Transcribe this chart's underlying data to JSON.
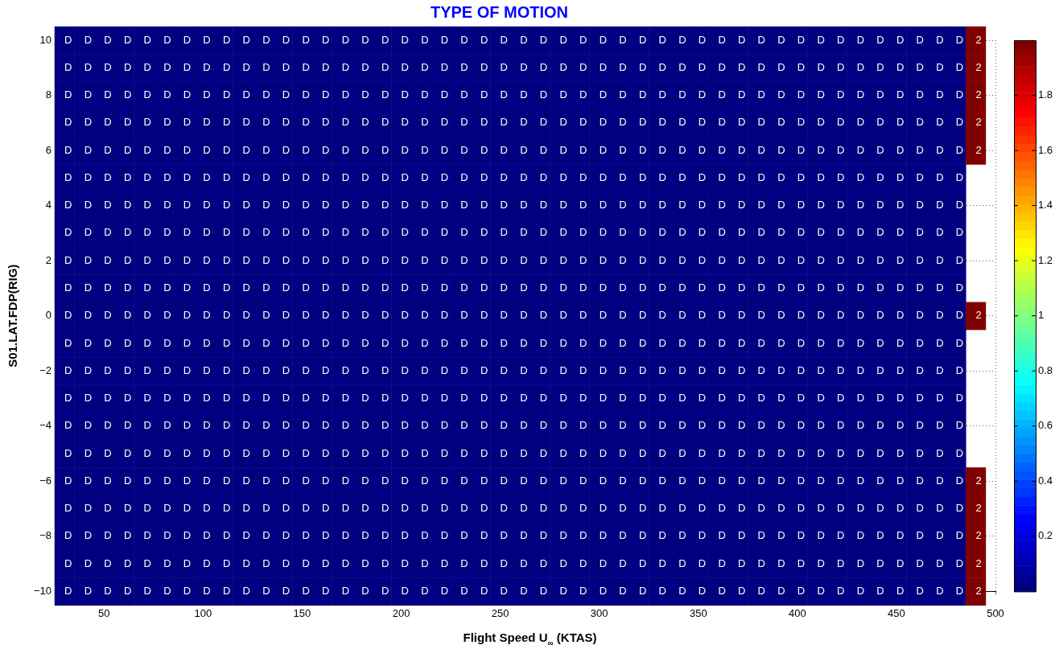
{
  "chart_data": {
    "type": "heatmap",
    "title": "TYPE OF MOTION",
    "xlabel": "Flight Speed U$_{∞}$ (KTAS)",
    "ylabel": "S01.LAT.FDP(RIG)",
    "x": [
      30,
      40,
      50,
      60,
      70,
      80,
      90,
      100,
      110,
      120,
      130,
      140,
      150,
      160,
      170,
      180,
      190,
      200,
      210,
      220,
      230,
      240,
      250,
      260,
      270,
      280,
      290,
      300,
      310,
      320,
      330,
      340,
      350,
      360,
      370,
      380,
      390,
      400,
      410,
      420,
      430,
      440,
      450,
      460,
      470,
      480,
      490
    ],
    "y_categories": [
      "10",
      null,
      "8",
      null,
      "6",
      null,
      "4",
      null,
      "2",
      null,
      "0",
      null,
      "−2",
      null,
      "−4",
      null,
      "−6",
      null,
      "−8",
      null,
      "−10"
    ],
    "xlim": [
      30,
      500
    ],
    "xticks": [
      50,
      100,
      150,
      200,
      250,
      300,
      350,
      400,
      450,
      500
    ],
    "clim": [
      0,
      2
    ],
    "cticks": [
      0.2,
      0.4,
      0.6,
      0.8,
      1,
      1.2,
      1.4,
      1.6,
      1.8
    ],
    "grid": true,
    "legend": false,
    "line_style": "dotted",
    "cells": [
      [
        0,
        0,
        0,
        0,
        0,
        0,
        0,
        0,
        0,
        0,
        0,
        0,
        0,
        0,
        0,
        0,
        0,
        0,
        0,
        0,
        0,
        0,
        0,
        0,
        0,
        0,
        0,
        0,
        0,
        0,
        0,
        0,
        0,
        0,
        0,
        0,
        0,
        0,
        0,
        0,
        0,
        0,
        0,
        0,
        0,
        0,
        2
      ],
      [
        0,
        0,
        0,
        0,
        0,
        0,
        0,
        0,
        0,
        0,
        0,
        0,
        0,
        0,
        0,
        0,
        0,
        0,
        0,
        0,
        0,
        0,
        0,
        0,
        0,
        0,
        0,
        0,
        0,
        0,
        0,
        0,
        0,
        0,
        0,
        0,
        0,
        0,
        0,
        0,
        0,
        0,
        0,
        0,
        0,
        0,
        2
      ],
      [
        0,
        0,
        0,
        0,
        0,
        0,
        0,
        0,
        0,
        0,
        0,
        0,
        0,
        0,
        0,
        0,
        0,
        0,
        0,
        0,
        0,
        0,
        0,
        0,
        0,
        0,
        0,
        0,
        0,
        0,
        0,
        0,
        0,
        0,
        0,
        0,
        0,
        0,
        0,
        0,
        0,
        0,
        0,
        0,
        0,
        0,
        2
      ],
      [
        0,
        0,
        0,
        0,
        0,
        0,
        0,
        0,
        0,
        0,
        0,
        0,
        0,
        0,
        0,
        0,
        0,
        0,
        0,
        0,
        0,
        0,
        0,
        0,
        0,
        0,
        0,
        0,
        0,
        0,
        0,
        0,
        0,
        0,
        0,
        0,
        0,
        0,
        0,
        0,
        0,
        0,
        0,
        0,
        0,
        0,
        2
      ],
      [
        0,
        0,
        0,
        0,
        0,
        0,
        0,
        0,
        0,
        0,
        0,
        0,
        0,
        0,
        0,
        0,
        0,
        0,
        0,
        0,
        0,
        0,
        0,
        0,
        0,
        0,
        0,
        0,
        0,
        0,
        0,
        0,
        0,
        0,
        0,
        0,
        0,
        0,
        0,
        0,
        0,
        0,
        0,
        0,
        0,
        0,
        2
      ],
      [
        0,
        0,
        0,
        0,
        0,
        0,
        0,
        0,
        0,
        0,
        0,
        0,
        0,
        0,
        0,
        0,
        0,
        0,
        0,
        0,
        0,
        0,
        0,
        0,
        0,
        0,
        0,
        0,
        0,
        0,
        0,
        0,
        0,
        0,
        0,
        0,
        0,
        0,
        0,
        0,
        0,
        0,
        0,
        0,
        0,
        0,
        null
      ],
      [
        0,
        0,
        0,
        0,
        0,
        0,
        0,
        0,
        0,
        0,
        0,
        0,
        0,
        0,
        0,
        0,
        0,
        0,
        0,
        0,
        0,
        0,
        0,
        0,
        0,
        0,
        0,
        0,
        0,
        0,
        0,
        0,
        0,
        0,
        0,
        0,
        0,
        0,
        0,
        0,
        0,
        0,
        0,
        0,
        0,
        0,
        null
      ],
      [
        0,
        0,
        0,
        0,
        0,
        0,
        0,
        0,
        0,
        0,
        0,
        0,
        0,
        0,
        0,
        0,
        0,
        0,
        0,
        0,
        0,
        0,
        0,
        0,
        0,
        0,
        0,
        0,
        0,
        0,
        0,
        0,
        0,
        0,
        0,
        0,
        0,
        0,
        0,
        0,
        0,
        0,
        0,
        0,
        0,
        0,
        null
      ],
      [
        0,
        0,
        0,
        0,
        0,
        0,
        0,
        0,
        0,
        0,
        0,
        0,
        0,
        0,
        0,
        0,
        0,
        0,
        0,
        0,
        0,
        0,
        0,
        0,
        0,
        0,
        0,
        0,
        0,
        0,
        0,
        0,
        0,
        0,
        0,
        0,
        0,
        0,
        0,
        0,
        0,
        0,
        0,
        0,
        0,
        0,
        null
      ],
      [
        0,
        0,
        0,
        0,
        0,
        0,
        0,
        0,
        0,
        0,
        0,
        0,
        0,
        0,
        0,
        0,
        0,
        0,
        0,
        0,
        0,
        0,
        0,
        0,
        0,
        0,
        0,
        0,
        0,
        0,
        0,
        0,
        0,
        0,
        0,
        0,
        0,
        0,
        0,
        0,
        0,
        0,
        0,
        0,
        0,
        0,
        null
      ],
      [
        0,
        0,
        0,
        0,
        0,
        0,
        0,
        0,
        0,
        0,
        0,
        0,
        0,
        0,
        0,
        0,
        0,
        0,
        0,
        0,
        0,
        0,
        0,
        0,
        0,
        0,
        0,
        0,
        0,
        0,
        0,
        0,
        0,
        0,
        0,
        0,
        0,
        0,
        0,
        0,
        0,
        0,
        0,
        0,
        0,
        0,
        2
      ],
      [
        0,
        0,
        0,
        0,
        0,
        0,
        0,
        0,
        0,
        0,
        0,
        0,
        0,
        0,
        0,
        0,
        0,
        0,
        0,
        0,
        0,
        0,
        0,
        0,
        0,
        0,
        0,
        0,
        0,
        0,
        0,
        0,
        0,
        0,
        0,
        0,
        0,
        0,
        0,
        0,
        0,
        0,
        0,
        0,
        0,
        0,
        null
      ],
      [
        0,
        0,
        0,
        0,
        0,
        0,
        0,
        0,
        0,
        0,
        0,
        0,
        0,
        0,
        0,
        0,
        0,
        0,
        0,
        0,
        0,
        0,
        0,
        0,
        0,
        0,
        0,
        0,
        0,
        0,
        0,
        0,
        0,
        0,
        0,
        0,
        0,
        0,
        0,
        0,
        0,
        0,
        0,
        0,
        0,
        0,
        null
      ],
      [
        0,
        0,
        0,
        0,
        0,
        0,
        0,
        0,
        0,
        0,
        0,
        0,
        0,
        0,
        0,
        0,
        0,
        0,
        0,
        0,
        0,
        0,
        0,
        0,
        0,
        0,
        0,
        0,
        0,
        0,
        0,
        0,
        0,
        0,
        0,
        0,
        0,
        0,
        0,
        0,
        0,
        0,
        0,
        0,
        0,
        0,
        null
      ],
      [
        0,
        0,
        0,
        0,
        0,
        0,
        0,
        0,
        0,
        0,
        0,
        0,
        0,
        0,
        0,
        0,
        0,
        0,
        0,
        0,
        0,
        0,
        0,
        0,
        0,
        0,
        0,
        0,
        0,
        0,
        0,
        0,
        0,
        0,
        0,
        0,
        0,
        0,
        0,
        0,
        0,
        0,
        0,
        0,
        0,
        0,
        null
      ],
      [
        0,
        0,
        0,
        0,
        0,
        0,
        0,
        0,
        0,
        0,
        0,
        0,
        0,
        0,
        0,
        0,
        0,
        0,
        0,
        0,
        0,
        0,
        0,
        0,
        0,
        0,
        0,
        0,
        0,
        0,
        0,
        0,
        0,
        0,
        0,
        0,
        0,
        0,
        0,
        0,
        0,
        0,
        0,
        0,
        0,
        0,
        null
      ],
      [
        0,
        0,
        0,
        0,
        0,
        0,
        0,
        0,
        0,
        0,
        0,
        0,
        0,
        0,
        0,
        0,
        0,
        0,
        0,
        0,
        0,
        0,
        0,
        0,
        0,
        0,
        0,
        0,
        0,
        0,
        0,
        0,
        0,
        0,
        0,
        0,
        0,
        0,
        0,
        0,
        0,
        0,
        0,
        0,
        0,
        0,
        2
      ],
      [
        0,
        0,
        0,
        0,
        0,
        0,
        0,
        0,
        0,
        0,
        0,
        0,
        0,
        0,
        0,
        0,
        0,
        0,
        0,
        0,
        0,
        0,
        0,
        0,
        0,
        0,
        0,
        0,
        0,
        0,
        0,
        0,
        0,
        0,
        0,
        0,
        0,
        0,
        0,
        0,
        0,
        0,
        0,
        0,
        0,
        0,
        2
      ],
      [
        0,
        0,
        0,
        0,
        0,
        0,
        0,
        0,
        0,
        0,
        0,
        0,
        0,
        0,
        0,
        0,
        0,
        0,
        0,
        0,
        0,
        0,
        0,
        0,
        0,
        0,
        0,
        0,
        0,
        0,
        0,
        0,
        0,
        0,
        0,
        0,
        0,
        0,
        0,
        0,
        0,
        0,
        0,
        0,
        0,
        0,
        2
      ],
      [
        0,
        0,
        0,
        0,
        0,
        0,
        0,
        0,
        0,
        0,
        0,
        0,
        0,
        0,
        0,
        0,
        0,
        0,
        0,
        0,
        0,
        0,
        0,
        0,
        0,
        0,
        0,
        0,
        0,
        0,
        0,
        0,
        0,
        0,
        0,
        0,
        0,
        0,
        0,
        0,
        0,
        0,
        0,
        0,
        0,
        0,
        2
      ],
      [
        0,
        0,
        0,
        0,
        0,
        0,
        0,
        0,
        0,
        0,
        0,
        0,
        0,
        0,
        0,
        0,
        0,
        0,
        0,
        0,
        0,
        0,
        0,
        0,
        0,
        0,
        0,
        0,
        0,
        0,
        0,
        0,
        0,
        0,
        0,
        0,
        0,
        0,
        0,
        0,
        0,
        0,
        0,
        0,
        0,
        0,
        2
      ]
    ],
    "cell_labels": [
      [
        "D",
        "D",
        "D",
        "D",
        "D",
        "D",
        "D",
        "D",
        "D",
        "D",
        "D",
        "D",
        "D",
        "D",
        "D",
        "D",
        "D",
        "D",
        "D",
        "D",
        "D",
        "D",
        "D",
        "D",
        "D",
        "D",
        "D",
        "D",
        "D",
        "D",
        "D",
        "D",
        "D",
        "D",
        "D",
        "D",
        "D",
        "D",
        "D",
        "D",
        "D",
        "D",
        "D",
        "D",
        "D",
        "D",
        "2"
      ],
      [
        "D",
        "D",
        "D",
        "D",
        "D",
        "D",
        "D",
        "D",
        "D",
        "D",
        "D",
        "D",
        "D",
        "D",
        "D",
        "D",
        "D",
        "D",
        "D",
        "D",
        "D",
        "D",
        "D",
        "D",
        "D",
        "D",
        "D",
        "D",
        "D",
        "D",
        "D",
        "D",
        "D",
        "D",
        "D",
        "D",
        "D",
        "D",
        "D",
        "D",
        "D",
        "D",
        "D",
        "D",
        "D",
        "D",
        "2"
      ],
      [
        "D",
        "D",
        "D",
        "D",
        "D",
        "D",
        "D",
        "D",
        "D",
        "D",
        "D",
        "D",
        "D",
        "D",
        "D",
        "D",
        "D",
        "D",
        "D",
        "D",
        "D",
        "D",
        "D",
        "D",
        "D",
        "D",
        "D",
        "D",
        "D",
        "D",
        "D",
        "D",
        "D",
        "D",
        "D",
        "D",
        "D",
        "D",
        "D",
        "D",
        "D",
        "D",
        "D",
        "D",
        "D",
        "D",
        "2"
      ],
      [
        "D",
        "D",
        "D",
        "D",
        "D",
        "D",
        "D",
        "D",
        "D",
        "D",
        "D",
        "D",
        "D",
        "D",
        "D",
        "D",
        "D",
        "D",
        "D",
        "D",
        "D",
        "D",
        "D",
        "D",
        "D",
        "D",
        "D",
        "D",
        "D",
        "D",
        "D",
        "D",
        "D",
        "D",
        "D",
        "D",
        "D",
        "D",
        "D",
        "D",
        "D",
        "D",
        "D",
        "D",
        "D",
        "D",
        "2"
      ],
      [
        "D",
        "D",
        "D",
        "D",
        "D",
        "D",
        "D",
        "D",
        "D",
        "D",
        "D",
        "D",
        "D",
        "D",
        "D",
        "D",
        "D",
        "D",
        "D",
        "D",
        "D",
        "D",
        "D",
        "D",
        "D",
        "D",
        "D",
        "D",
        "D",
        "D",
        "D",
        "D",
        "D",
        "D",
        "D",
        "D",
        "D",
        "D",
        "D",
        "D",
        "D",
        "D",
        "D",
        "D",
        "D",
        "D",
        "2"
      ],
      [
        "D",
        "D",
        "D",
        "D",
        "D",
        "D",
        "D",
        "D",
        "D",
        "D",
        "D",
        "D",
        "D",
        "D",
        "D",
        "D",
        "D",
        "D",
        "D",
        "D",
        "D",
        "D",
        "D",
        "D",
        "D",
        "D",
        "D",
        "D",
        "D",
        "D",
        "D",
        "D",
        "D",
        "D",
        "D",
        "D",
        "D",
        "D",
        "D",
        "D",
        "D",
        "D",
        "D",
        "D",
        "D",
        "D",
        null
      ],
      [
        "D",
        "D",
        "D",
        "D",
        "D",
        "D",
        "D",
        "D",
        "D",
        "D",
        "D",
        "D",
        "D",
        "D",
        "D",
        "D",
        "D",
        "D",
        "D",
        "D",
        "D",
        "D",
        "D",
        "D",
        "D",
        "D",
        "D",
        "D",
        "D",
        "D",
        "D",
        "D",
        "D",
        "D",
        "D",
        "D",
        "D",
        "D",
        "D",
        "D",
        "D",
        "D",
        "D",
        "D",
        "D",
        "D",
        null
      ],
      [
        "D",
        "D",
        "D",
        "D",
        "D",
        "D",
        "D",
        "D",
        "D",
        "D",
        "D",
        "D",
        "D",
        "D",
        "D",
        "D",
        "D",
        "D",
        "D",
        "D",
        "D",
        "D",
        "D",
        "D",
        "D",
        "D",
        "D",
        "D",
        "D",
        "D",
        "D",
        "D",
        "D",
        "D",
        "D",
        "D",
        "D",
        "D",
        "D",
        "D",
        "D",
        "D",
        "D",
        "D",
        "D",
        "D",
        null
      ],
      [
        "D",
        "D",
        "D",
        "D",
        "D",
        "D",
        "D",
        "D",
        "D",
        "D",
        "D",
        "D",
        "D",
        "D",
        "D",
        "D",
        "D",
        "D",
        "D",
        "D",
        "D",
        "D",
        "D",
        "D",
        "D",
        "D",
        "D",
        "D",
        "D",
        "D",
        "D",
        "D",
        "D",
        "D",
        "D",
        "D",
        "D",
        "D",
        "D",
        "D",
        "D",
        "D",
        "D",
        "D",
        "D",
        "D",
        null
      ],
      [
        "D",
        "D",
        "D",
        "D",
        "D",
        "D",
        "D",
        "D",
        "D",
        "D",
        "D",
        "D",
        "D",
        "D",
        "D",
        "D",
        "D",
        "D",
        "D",
        "D",
        "D",
        "D",
        "D",
        "D",
        "D",
        "D",
        "D",
        "D",
        "D",
        "D",
        "D",
        "D",
        "D",
        "D",
        "D",
        "D",
        "D",
        "D",
        "D",
        "D",
        "D",
        "D",
        "D",
        "D",
        "D",
        "D",
        null
      ],
      [
        "D",
        "D",
        "D",
        "D",
        "D",
        "D",
        "D",
        "D",
        "D",
        "D",
        "D",
        "D",
        "D",
        "D",
        "D",
        "D",
        "D",
        "D",
        "D",
        "D",
        "D",
        "D",
        "D",
        "D",
        "D",
        "D",
        "D",
        "D",
        "D",
        "D",
        "D",
        "D",
        "D",
        "D",
        "D",
        "D",
        "D",
        "D",
        "D",
        "D",
        "D",
        "D",
        "D",
        "D",
        "D",
        "D",
        "2"
      ],
      [
        "D",
        "D",
        "D",
        "D",
        "D",
        "D",
        "D",
        "D",
        "D",
        "D",
        "D",
        "D",
        "D",
        "D",
        "D",
        "D",
        "D",
        "D",
        "D",
        "D",
        "D",
        "D",
        "D",
        "D",
        "D",
        "D",
        "D",
        "D",
        "D",
        "D",
        "D",
        "D",
        "D",
        "D",
        "D",
        "D",
        "D",
        "D",
        "D",
        "D",
        "D",
        "D",
        "D",
        "D",
        "D",
        "D",
        null
      ],
      [
        "D",
        "D",
        "D",
        "D",
        "D",
        "D",
        "D",
        "D",
        "D",
        "D",
        "D",
        "D",
        "D",
        "D",
        "D",
        "D",
        "D",
        "D",
        "D",
        "D",
        "D",
        "D",
        "D",
        "D",
        "D",
        "D",
        "D",
        "D",
        "D",
        "D",
        "D",
        "D",
        "D",
        "D",
        "D",
        "D",
        "D",
        "D",
        "D",
        "D",
        "D",
        "D",
        "D",
        "D",
        "D",
        "D",
        null
      ],
      [
        "D",
        "D",
        "D",
        "D",
        "D",
        "D",
        "D",
        "D",
        "D",
        "D",
        "D",
        "D",
        "D",
        "D",
        "D",
        "D",
        "D",
        "D",
        "D",
        "D",
        "D",
        "D",
        "D",
        "D",
        "D",
        "D",
        "D",
        "D",
        "D",
        "D",
        "D",
        "D",
        "D",
        "D",
        "D",
        "D",
        "D",
        "D",
        "D",
        "D",
        "D",
        "D",
        "D",
        "D",
        "D",
        "D",
        null
      ],
      [
        "D",
        "D",
        "D",
        "D",
        "D",
        "D",
        "D",
        "D",
        "D",
        "D",
        "D",
        "D",
        "D",
        "D",
        "D",
        "D",
        "D",
        "D",
        "D",
        "D",
        "D",
        "D",
        "D",
        "D",
        "D",
        "D",
        "D",
        "D",
        "D",
        "D",
        "D",
        "D",
        "D",
        "D",
        "D",
        "D",
        "D",
        "D",
        "D",
        "D",
        "D",
        "D",
        "D",
        "D",
        "D",
        "D",
        null
      ],
      [
        "D",
        "D",
        "D",
        "D",
        "D",
        "D",
        "D",
        "D",
        "D",
        "D",
        "D",
        "D",
        "D",
        "D",
        "D",
        "D",
        "D",
        "D",
        "D",
        "D",
        "D",
        "D",
        "D",
        "D",
        "D",
        "D",
        "D",
        "D",
        "D",
        "D",
        "D",
        "D",
        "D",
        "D",
        "D",
        "D",
        "D",
        "D",
        "D",
        "D",
        "D",
        "D",
        "D",
        "D",
        "D",
        "D",
        null
      ],
      [
        "D",
        "D",
        "D",
        "D",
        "D",
        "D",
        "D",
        "D",
        "D",
        "D",
        "D",
        "D",
        "D",
        "D",
        "D",
        "D",
        "D",
        "D",
        "D",
        "D",
        "D",
        "D",
        "D",
        "D",
        "D",
        "D",
        "D",
        "D",
        "D",
        "D",
        "D",
        "D",
        "D",
        "D",
        "D",
        "D",
        "D",
        "D",
        "D",
        "D",
        "D",
        "D",
        "D",
        "D",
        "D",
        "D",
        "2"
      ],
      [
        "D",
        "D",
        "D",
        "D",
        "D",
        "D",
        "D",
        "D",
        "D",
        "D",
        "D",
        "D",
        "D",
        "D",
        "D",
        "D",
        "D",
        "D",
        "D",
        "D",
        "D",
        "D",
        "D",
        "D",
        "D",
        "D",
        "D",
        "D",
        "D",
        "D",
        "D",
        "D",
        "D",
        "D",
        "D",
        "D",
        "D",
        "D",
        "D",
        "D",
        "D",
        "D",
        "D",
        "D",
        "D",
        "D",
        "2"
      ],
      [
        "D",
        "D",
        "D",
        "D",
        "D",
        "D",
        "D",
        "D",
        "D",
        "D",
        "D",
        "D",
        "D",
        "D",
        "D",
        "D",
        "D",
        "D",
        "D",
        "D",
        "D",
        "D",
        "D",
        "D",
        "D",
        "D",
        "D",
        "D",
        "D",
        "D",
        "D",
        "D",
        "D",
        "D",
        "D",
        "D",
        "D",
        "D",
        "D",
        "D",
        "D",
        "D",
        "D",
        "D",
        "D",
        "D",
        "2"
      ],
      [
        "D",
        "D",
        "D",
        "D",
        "D",
        "D",
        "D",
        "D",
        "D",
        "D",
        "D",
        "D",
        "D",
        "D",
        "D",
        "D",
        "D",
        "D",
        "D",
        "D",
        "D",
        "D",
        "D",
        "D",
        "D",
        "D",
        "D",
        "D",
        "D",
        "D",
        "D",
        "D",
        "D",
        "D",
        "D",
        "D",
        "D",
        "D",
        "D",
        "D",
        "D",
        "D",
        "D",
        "D",
        "D",
        "D",
        "2"
      ],
      [
        "D",
        "D",
        "D",
        "D",
        "D",
        "D",
        "D",
        "D",
        "D",
        "D",
        "D",
        "D",
        "D",
        "D",
        "D",
        "D",
        "D",
        "D",
        "D",
        "D",
        "D",
        "D",
        "D",
        "D",
        "D",
        "D",
        "D",
        "D",
        "D",
        "D",
        "D",
        "D",
        "D",
        "D",
        "D",
        "D",
        "D",
        "D",
        "D",
        "D",
        "D",
        "D",
        "D",
        "D",
        "D",
        "D",
        "2"
      ]
    ]
  }
}
